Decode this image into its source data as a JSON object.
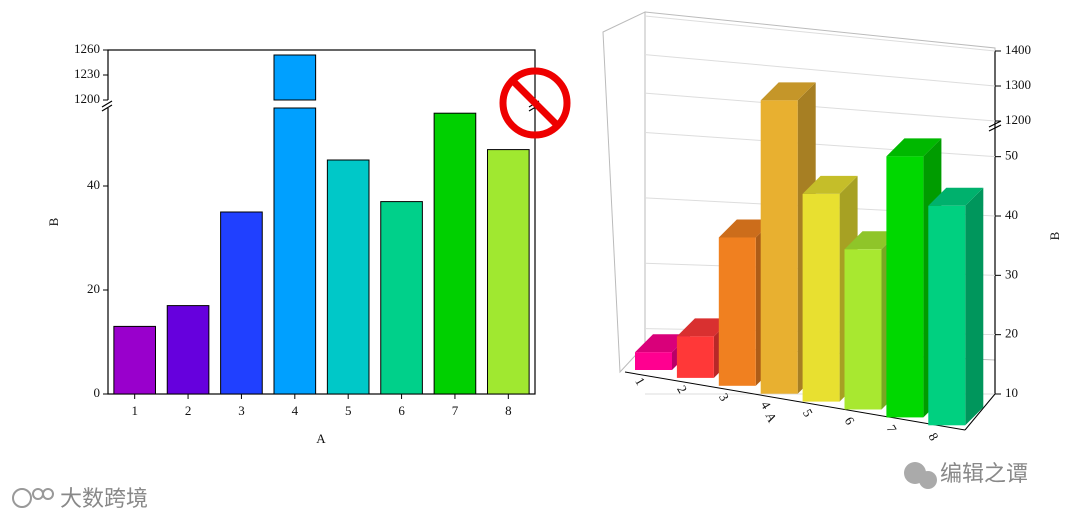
{
  "chart_data": [
    {
      "type": "bar",
      "xlabel": "A",
      "ylabel": "B",
      "categories": [
        "1",
        "2",
        "3",
        "4",
        "5",
        "6",
        "7",
        "8"
      ],
      "values": [
        13,
        17,
        35,
        1254,
        45,
        37,
        54,
        47
      ],
      "colors": [
        "#9900cc",
        "#6600dd",
        "#2040ff",
        "#00a0ff",
        "#00c8c8",
        "#00d08a",
        "#00d000",
        "#a0e830"
      ],
      "ylim": [
        0,
        1260
      ],
      "axis_break": [
        55,
        1200
      ],
      "yticks": [
        0,
        20,
        40,
        1200,
        1230,
        1260
      ]
    },
    {
      "type": "bar3d",
      "xlabel": "A",
      "ylabel": "B",
      "categories": [
        "1",
        "2",
        "3",
        "4",
        "5",
        "6",
        "7",
        "8"
      ],
      "values": [
        13,
        17,
        35,
        1258,
        45,
        37,
        54,
        47
      ],
      "colors": [
        "#ff0090",
        "#ff3838",
        "#f08020",
        "#e8b030",
        "#e8e030",
        "#a8e830",
        "#00d800",
        "#00d080"
      ],
      "ylim": [
        10,
        1400
      ],
      "axis_break": [
        55,
        1200
      ],
      "yticks": [
        10,
        20,
        30,
        40,
        50,
        1200,
        1300,
        1400
      ],
      "grid": true
    }
  ],
  "watermarks": [
    "大数跨境",
    "编辑之谭"
  ]
}
